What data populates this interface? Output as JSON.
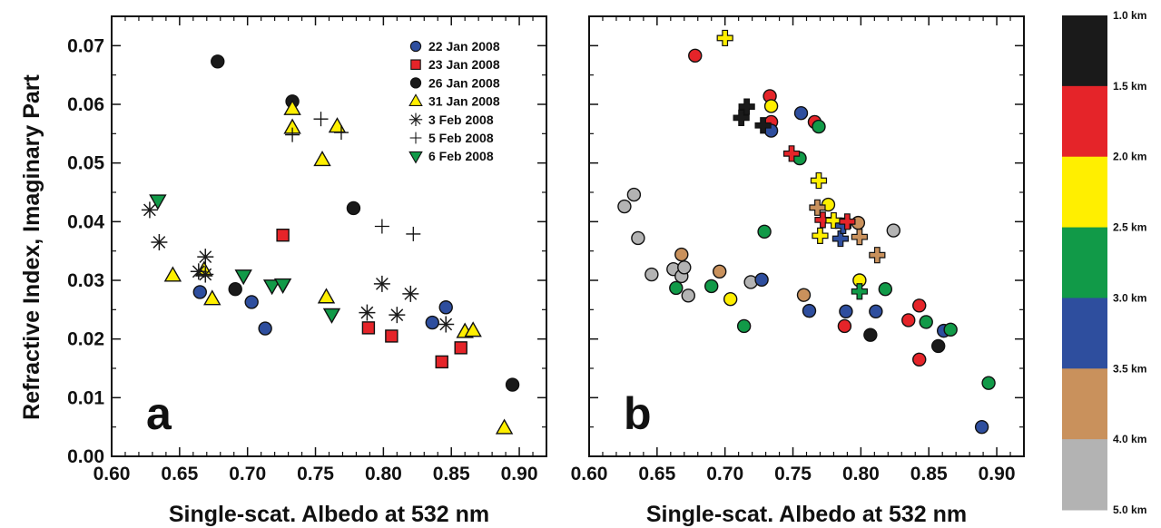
{
  "chart_data": [
    {
      "type": "scatter",
      "panel_label": "a",
      "xlabel": "Single-scat. Albedo at 532 nm",
      "ylabel": "Refractive Index, Imaginary Part",
      "xlim": [
        0.6,
        0.92
      ],
      "ylim": [
        0.0,
        0.075
      ],
      "xticks": [
        "0.60",
        "0.65",
        "0.70",
        "0.75",
        "0.80",
        "0.85",
        "0.90"
      ],
      "yticks": [
        "0.00",
        "0.01",
        "0.02",
        "0.03",
        "0.04",
        "0.05",
        "0.06",
        "0.07"
      ],
      "grid": false,
      "legend_position": "top-right",
      "series": [
        {
          "name": "22 Jan 2008",
          "marker": "circle",
          "color": "#2e4e9e",
          "x": [
            0.665,
            0.703,
            0.713,
            0.836,
            0.846
          ],
          "y": [
            0.028,
            0.0263,
            0.0218,
            0.0228,
            0.0254
          ]
        },
        {
          "name": "23 Jan 2008",
          "marker": "square",
          "color": "#e52429",
          "x": [
            0.726,
            0.789,
            0.806,
            0.843,
            0.857
          ],
          "y": [
            0.0377,
            0.0219,
            0.0205,
            0.0161,
            0.0185
          ]
        },
        {
          "name": "26 Jan 2008",
          "marker": "circle",
          "color": "#1a1a1a",
          "x": [
            0.678,
            0.691,
            0.733,
            0.778,
            0.895
          ],
          "y": [
            0.0673,
            0.0285,
            0.0605,
            0.0423,
            0.0122
          ]
        },
        {
          "name": "31 Jan 2008",
          "marker": "triangle-up",
          "color": "#ffef00",
          "x": [
            0.645,
            0.668,
            0.674,
            0.733,
            0.733,
            0.755,
            0.758,
            0.766,
            0.86,
            0.866,
            0.889
          ],
          "y": [
            0.0308,
            0.0317,
            0.0268,
            0.0592,
            0.056,
            0.0505,
            0.0271,
            0.0562,
            0.0212,
            0.0214,
            0.0048
          ]
        },
        {
          "name": "3 Feb 2008",
          "marker": "asterisk",
          "color": "#1a1a1a",
          "x": [
            0.628,
            0.635,
            0.664,
            0.669,
            0.669,
            0.788,
            0.799,
            0.81,
            0.82,
            0.846
          ],
          "y": [
            0.042,
            0.0365,
            0.0315,
            0.034,
            0.031,
            0.0245,
            0.0294,
            0.0241,
            0.0277,
            0.0225
          ]
        },
        {
          "name": "5 Feb 2008",
          "marker": "plus",
          "color": "#1a1a1a",
          "x": [
            0.733,
            0.754,
            0.769,
            0.799,
            0.822
          ],
          "y": [
            0.0548,
            0.0575,
            0.0552,
            0.0392,
            0.0379
          ]
        },
        {
          "name": "6 Feb 2008",
          "marker": "triangle-down",
          "color": "#119a48",
          "x": [
            0.634,
            0.697,
            0.718,
            0.726,
            0.762
          ],
          "y": [
            0.0436,
            0.0308,
            0.0291,
            0.0293,
            0.0242
          ]
        }
      ]
    },
    {
      "type": "scatter",
      "panel_label": "b",
      "xlabel": "Single-scat. Albedo at 532 nm",
      "xlim": [
        0.6,
        0.92
      ],
      "ylim": [
        0.0,
        0.075
      ],
      "xticks": [
        "0.60",
        "0.65",
        "0.70",
        "0.75",
        "0.80",
        "0.85",
        "0.90"
      ],
      "grid": false,
      "colorbar": {
        "labels": [
          "1.0 km",
          "1.5 km",
          "2.0 km",
          "2.5 km",
          "3.0 km",
          "3.5 km",
          "4.0 km",
          "5.0 km"
        ],
        "colors": [
          "#1a1a1a",
          "#e52429",
          "#ffef00",
          "#119a48",
          "#2e4e9e",
          "#c9915c",
          "#b3b3b3"
        ]
      },
      "points": [
        {
          "x": 0.678,
          "y": 0.0683,
          "marker": "circle",
          "color": "#e52429"
        },
        {
          "x": 0.733,
          "y": 0.0614,
          "marker": "circle",
          "color": "#e52429"
        },
        {
          "x": 0.734,
          "y": 0.0597,
          "marker": "circle",
          "color": "#ffef00"
        },
        {
          "x": 0.734,
          "y": 0.057,
          "marker": "circle",
          "color": "#e52429"
        },
        {
          "x": 0.734,
          "y": 0.0555,
          "marker": "circle",
          "color": "#2e4e9e"
        },
        {
          "x": 0.756,
          "y": 0.0585,
          "marker": "circle",
          "color": "#2e4e9e"
        },
        {
          "x": 0.766,
          "y": 0.057,
          "marker": "circle",
          "color": "#e52429"
        },
        {
          "x": 0.769,
          "y": 0.0562,
          "marker": "circle",
          "color": "#119a48"
        },
        {
          "x": 0.755,
          "y": 0.0508,
          "marker": "circle",
          "color": "#119a48"
        },
        {
          "x": 0.626,
          "y": 0.0426,
          "marker": "circle",
          "color": "#b3b3b3"
        },
        {
          "x": 0.633,
          "y": 0.0446,
          "marker": "circle",
          "color": "#b3b3b3"
        },
        {
          "x": 0.636,
          "y": 0.0372,
          "marker": "circle",
          "color": "#b3b3b3"
        },
        {
          "x": 0.646,
          "y": 0.031,
          "marker": "circle",
          "color": "#b3b3b3"
        },
        {
          "x": 0.662,
          "y": 0.0319,
          "marker": "circle",
          "color": "#b3b3b3"
        },
        {
          "x": 0.668,
          "y": 0.0307,
          "marker": "circle",
          "color": "#b3b3b3"
        },
        {
          "x": 0.67,
          "y": 0.0322,
          "marker": "circle",
          "color": "#b3b3b3"
        },
        {
          "x": 0.673,
          "y": 0.0274,
          "marker": "circle",
          "color": "#b3b3b3"
        },
        {
          "x": 0.668,
          "y": 0.0344,
          "marker": "circle",
          "color": "#c9915c"
        },
        {
          "x": 0.664,
          "y": 0.0287,
          "marker": "circle",
          "color": "#119a48"
        },
        {
          "x": 0.69,
          "y": 0.029,
          "marker": "circle",
          "color": "#119a48"
        },
        {
          "x": 0.696,
          "y": 0.0315,
          "marker": "circle",
          "color": "#c9915c"
        },
        {
          "x": 0.704,
          "y": 0.0268,
          "marker": "circle",
          "color": "#ffef00"
        },
        {
          "x": 0.714,
          "y": 0.0222,
          "marker": "circle",
          "color": "#119a48"
        },
        {
          "x": 0.719,
          "y": 0.0297,
          "marker": "circle",
          "color": "#b3b3b3"
        },
        {
          "x": 0.727,
          "y": 0.0301,
          "marker": "circle",
          "color": "#2e4e9e"
        },
        {
          "x": 0.729,
          "y": 0.0383,
          "marker": "circle",
          "color": "#119a48"
        },
        {
          "x": 0.758,
          "y": 0.0275,
          "marker": "circle",
          "color": "#c9915c"
        },
        {
          "x": 0.762,
          "y": 0.0248,
          "marker": "circle",
          "color": "#2e4e9e"
        },
        {
          "x": 0.776,
          "y": 0.0429,
          "marker": "circle",
          "color": "#ffef00"
        },
        {
          "x": 0.788,
          "y": 0.0222,
          "marker": "circle",
          "color": "#e52429"
        },
        {
          "x": 0.789,
          "y": 0.0247,
          "marker": "circle",
          "color": "#2e4e9e"
        },
        {
          "x": 0.798,
          "y": 0.0398,
          "marker": "circle",
          "color": "#c9915c"
        },
        {
          "x": 0.799,
          "y": 0.03,
          "marker": "circle",
          "color": "#ffef00"
        },
        {
          "x": 0.807,
          "y": 0.0207,
          "marker": "circle",
          "color": "#1a1a1a"
        },
        {
          "x": 0.811,
          "y": 0.0247,
          "marker": "circle",
          "color": "#2e4e9e"
        },
        {
          "x": 0.818,
          "y": 0.0285,
          "marker": "circle",
          "color": "#119a48"
        },
        {
          "x": 0.824,
          "y": 0.0385,
          "marker": "circle",
          "color": "#b3b3b3"
        },
        {
          "x": 0.835,
          "y": 0.0232,
          "marker": "circle",
          "color": "#e52429"
        },
        {
          "x": 0.843,
          "y": 0.0257,
          "marker": "circle",
          "color": "#e52429"
        },
        {
          "x": 0.843,
          "y": 0.0165,
          "marker": "circle",
          "color": "#e52429"
        },
        {
          "x": 0.848,
          "y": 0.0229,
          "marker": "circle",
          "color": "#119a48"
        },
        {
          "x": 0.857,
          "y": 0.0188,
          "marker": "circle",
          "color": "#1a1a1a"
        },
        {
          "x": 0.861,
          "y": 0.0214,
          "marker": "circle",
          "color": "#2e4e9e"
        },
        {
          "x": 0.866,
          "y": 0.0216,
          "marker": "circle",
          "color": "#119a48"
        },
        {
          "x": 0.889,
          "y": 0.005,
          "marker": "circle",
          "color": "#2e4e9e"
        },
        {
          "x": 0.894,
          "y": 0.0125,
          "marker": "circle",
          "color": "#119a48"
        },
        {
          "x": 0.7,
          "y": 0.0713,
          "marker": "plus",
          "color": "#ffef00"
        },
        {
          "x": 0.712,
          "y": 0.0577,
          "marker": "plus",
          "color": "#1a1a1a"
        },
        {
          "x": 0.716,
          "y": 0.0596,
          "marker": "plus",
          "color": "#1a1a1a"
        },
        {
          "x": 0.728,
          "y": 0.0564,
          "marker": "plus",
          "color": "#1a1a1a"
        },
        {
          "x": 0.749,
          "y": 0.0516,
          "marker": "plus",
          "color": "#e52429"
        },
        {
          "x": 0.769,
          "y": 0.047,
          "marker": "plus",
          "color": "#ffef00"
        },
        {
          "x": 0.768,
          "y": 0.0424,
          "marker": "plus",
          "color": "#c9915c"
        },
        {
          "x": 0.772,
          "y": 0.0403,
          "marker": "plus",
          "color": "#e52429"
        },
        {
          "x": 0.78,
          "y": 0.0402,
          "marker": "plus",
          "color": "#ffef00"
        },
        {
          "x": 0.77,
          "y": 0.0376,
          "marker": "plus",
          "color": "#ffef00"
        },
        {
          "x": 0.785,
          "y": 0.0371,
          "marker": "plus",
          "color": "#2e4e9e"
        },
        {
          "x": 0.787,
          "y": 0.0393,
          "marker": "plus",
          "color": "#2e4e9e"
        },
        {
          "x": 0.79,
          "y": 0.04,
          "marker": "plus",
          "color": "#e52429"
        },
        {
          "x": 0.799,
          "y": 0.0374,
          "marker": "plus",
          "color": "#c9915c"
        },
        {
          "x": 0.799,
          "y": 0.0281,
          "marker": "plus",
          "color": "#119a48"
        },
        {
          "x": 0.812,
          "y": 0.0343,
          "marker": "plus",
          "color": "#c9915c"
        }
      ]
    }
  ]
}
